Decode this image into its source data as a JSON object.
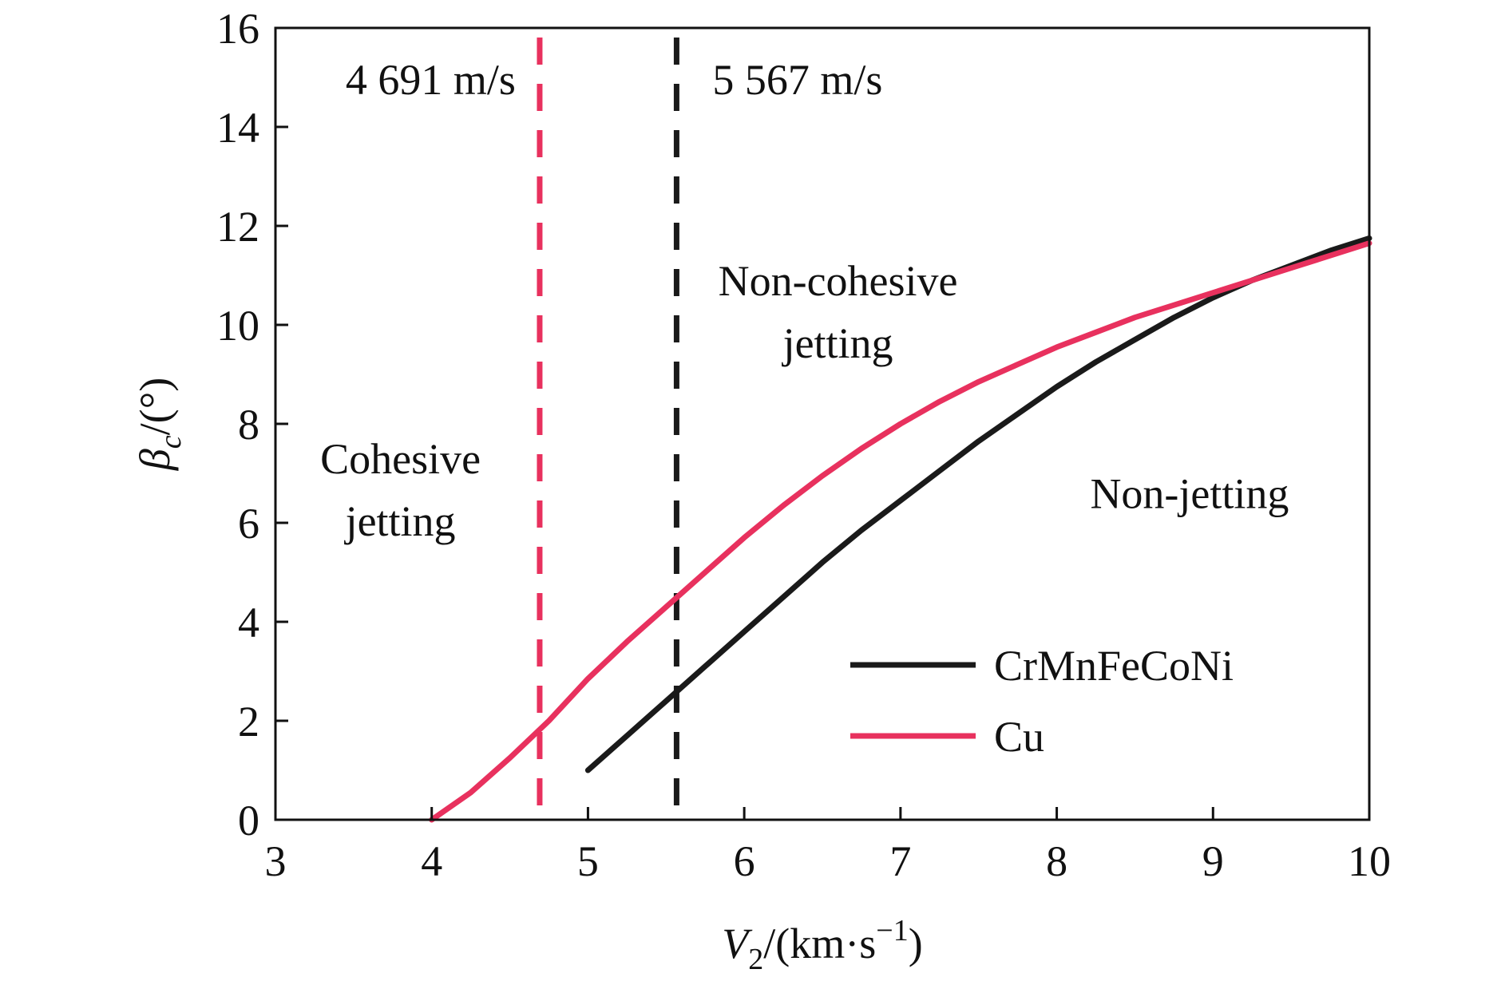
{
  "chart_data": {
    "type": "line",
    "xlabel_parts": {
      "var": "V",
      "sub": "2",
      "unit": "/(km·s",
      "sup": "−1",
      "close": ")"
    },
    "ylabel_parts": {
      "var": "β",
      "sub": "c",
      "unit": "/(°)"
    },
    "xlim": [
      3,
      10
    ],
    "ylim": [
      0,
      16
    ],
    "x_ticks": [
      3,
      4,
      5,
      6,
      7,
      8,
      9,
      10
    ],
    "y_ticks": [
      0,
      2,
      4,
      6,
      8,
      10,
      12,
      14,
      16
    ],
    "x_tick_labels": [
      "3",
      "4",
      "5",
      "6",
      "7",
      "8",
      "9",
      "10"
    ],
    "y_tick_labels": [
      "0",
      "2",
      "4",
      "6",
      "8",
      "10",
      "12",
      "14",
      "16"
    ],
    "grid": false,
    "legend_position": "bottom-right",
    "series": [
      {
        "name": "CrMnFeCoNi",
        "color": "#1a1a1a",
        "x": [
          5.0,
          5.25,
          5.5,
          5.75,
          6.0,
          6.25,
          6.5,
          6.75,
          7.0,
          7.25,
          7.5,
          7.75,
          8.0,
          8.25,
          8.5,
          8.75,
          9.0,
          9.25,
          9.5,
          9.75,
          10.0
        ],
        "y": [
          1.0,
          1.7,
          2.4,
          3.1,
          3.8,
          4.5,
          5.2,
          5.85,
          6.45,
          7.05,
          7.65,
          8.2,
          8.75,
          9.25,
          9.7,
          10.15,
          10.55,
          10.9,
          11.2,
          11.5,
          11.75
        ]
      },
      {
        "name": "Cu",
        "color": "#e8315e",
        "x": [
          4.0,
          4.25,
          4.5,
          4.75,
          5.0,
          5.25,
          5.5,
          5.75,
          6.0,
          6.25,
          6.5,
          6.75,
          7.0,
          7.25,
          7.5,
          7.75,
          8.0,
          8.25,
          8.5,
          8.75,
          9.0,
          9.25,
          9.5,
          9.75,
          10.0
        ],
        "y": [
          0.0,
          0.55,
          1.25,
          2.0,
          2.85,
          3.6,
          4.3,
          5.0,
          5.7,
          6.35,
          6.95,
          7.5,
          8.0,
          8.45,
          8.85,
          9.2,
          9.55,
          9.85,
          10.15,
          10.4,
          10.65,
          10.9,
          11.15,
          11.4,
          11.65
        ]
      }
    ],
    "reference_lines": [
      {
        "x": 4.691,
        "color": "#e8315e",
        "style": "dashed",
        "label": "4 691 m/s"
      },
      {
        "x": 5.567,
        "color": "#1a1a1a",
        "style": "dashed",
        "label": "5 567 m/s"
      }
    ],
    "annotations": [
      {
        "id": "cohesive",
        "lines": [
          "Cohesive",
          "jetting"
        ],
        "x": 3.8,
        "y": 7.0
      },
      {
        "id": "noncohesive",
        "lines": [
          "Non-cohesive",
          "jetting"
        ],
        "x": 6.6,
        "y": 10.6
      },
      {
        "id": "nonjetting",
        "lines": [
          "Non-jetting"
        ],
        "x": 8.85,
        "y": 6.3
      }
    ]
  }
}
